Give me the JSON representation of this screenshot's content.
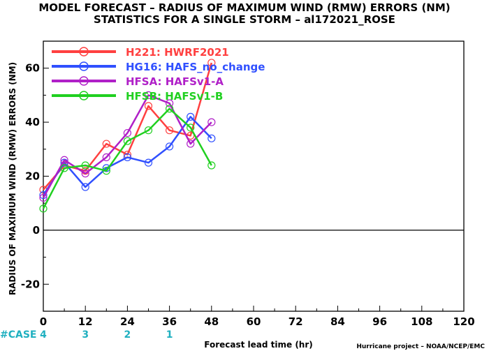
{
  "chart_data": {
    "type": "line",
    "title": "MODEL FORECAST – RADIUS OF MAXIMUM WIND (RMW) ERRORS (NM)",
    "subtitle": "STATISTICS FOR A SINGLE STORM – al172021_ROSE",
    "xlabel": "Forecast lead time (hr)",
    "ylabel": "RADIUS OF MAXIMUM WIND (RMW) ERRORS (NM)",
    "xlim": [
      0,
      120
    ],
    "ylim": [
      -30,
      70
    ],
    "x_ticks": [
      0,
      12,
      24,
      36,
      48,
      60,
      72,
      84,
      96,
      108,
      120
    ],
    "y_ticks": [
      -20,
      0,
      20,
      40,
      60
    ],
    "x": [
      0,
      6,
      12,
      18,
      24,
      30,
      36,
      42,
      48
    ],
    "zero_line": true,
    "grid": false,
    "legend_position": "top-left",
    "series": [
      {
        "name": "H221: HWRF2021",
        "color": "#ff4040",
        "values": [
          15,
          24,
          22,
          32,
          28,
          46,
          37,
          35,
          62
        ]
      },
      {
        "name": "HG16: HAFS_no_change",
        "color": "#3050ff",
        "values": [
          13,
          25,
          16,
          23,
          27,
          25,
          31,
          42,
          34
        ]
      },
      {
        "name": "HFSA: HAFSv1-A",
        "color": "#b020c8",
        "values": [
          12,
          26,
          21,
          27,
          36,
          50,
          47,
          32,
          40
        ]
      },
      {
        "name": "HFSB: HAFSv1-B",
        "color": "#20d020",
        "values": [
          8,
          23,
          24,
          22,
          33,
          37,
          45,
          38,
          24
        ]
      }
    ],
    "case_counts": {
      "label": "#CASE",
      "color": "#20b0c0",
      "x": [
        0,
        12,
        24,
        36
      ],
      "values": [
        "4",
        "3",
        "2",
        "1"
      ]
    },
    "credit": "Hurricane project – NOAA/NCEP/EMC"
  }
}
